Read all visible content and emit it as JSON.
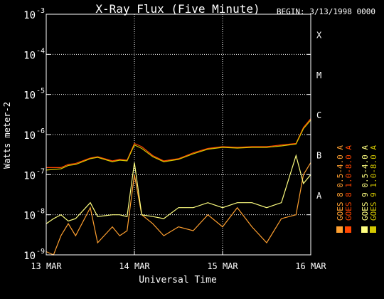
{
  "chart_data": {
    "type": "line",
    "title": "X-Ray Flux (Five Minute)",
    "begin_label": "BEGIN: 3/13/1998 0000",
    "xlabel": "Universal Time",
    "ylabel": "Watts meter-2",
    "x_ticks": [
      "13 MAR",
      "14 MAR",
      "15 MAR",
      "16 MAR"
    ],
    "x_range_days": [
      0,
      3
    ],
    "y_scale": "log",
    "y_range": [
      1e-09,
      0.001
    ],
    "y_ticks": [
      {
        "base": "10",
        "exp": "-3",
        "value": 0.001
      },
      {
        "base": "10",
        "exp": "-4",
        "value": 0.0001
      },
      {
        "base": "10",
        "exp": "-5",
        "value": 1e-05
      },
      {
        "base": "10",
        "exp": "-6",
        "value": 1e-06
      },
      {
        "base": "10",
        "exp": "-7",
        "value": 1e-07
      },
      {
        "base": "10",
        "exp": "-8",
        "value": 1e-08
      },
      {
        "base": "10",
        "exp": "-9",
        "value": 1e-09
      }
    ],
    "flare_classes": [
      {
        "label": "X",
        "value": 0.0003
      },
      {
        "label": "M",
        "value": 3e-05
      },
      {
        "label": "C",
        "value": 3e-06
      },
      {
        "label": "B",
        "value": 3e-07
      },
      {
        "label": "A",
        "value": 3e-08
      }
    ],
    "grid": "dotted",
    "legend_position": "right",
    "series": [
      {
        "name": "GOES 8 1.0-8.0 A",
        "color": "#ff4500",
        "x": [
          "3/13 00:00",
          "3/13 04:00",
          "3/13 06:00",
          "3/13 08:00",
          "3/13 12:00",
          "3/13 14:00",
          "3/13 18:00",
          "3/13 20:00",
          "3/13 22:00",
          "3/14 00:00",
          "3/14 02:00",
          "3/14 05:00",
          "3/14 08:00",
          "3/14 12:00",
          "3/14 16:00",
          "3/14 20:00",
          "3/15 00:00",
          "3/15 04:00",
          "3/15 08:00",
          "3/15 12:00",
          "3/15 16:00",
          "3/15 20:00",
          "3/15 22:00",
          "3/16 00:00"
        ],
        "y": [
          1.5e-07,
          1.5e-07,
          1.8e-07,
          1.9e-07,
          2.6e-07,
          2.8e-07,
          2.2e-07,
          2.4e-07,
          2.3e-07,
          6e-07,
          5e-07,
          3e-07,
          2.2e-07,
          2.5e-07,
          3.5e-07,
          4.5e-07,
          5e-07,
          4.8e-07,
          5e-07,
          5e-07,
          5.5e-07,
          6e-07,
          1.5e-06,
          2.5e-06
        ]
      },
      {
        "name": "GOES 8 0.5-4.0 A",
        "color": "#ffa030",
        "x": [
          "3/13 00:00",
          "3/13 02:00",
          "3/13 04:00",
          "3/13 06:00",
          "3/13 08:00",
          "3/13 12:00",
          "3/13 14:00",
          "3/13 18:00",
          "3/13 20:00",
          "3/13 22:00",
          "3/14 00:00",
          "3/14 02:00",
          "3/14 05:00",
          "3/14 08:00",
          "3/14 12:00",
          "3/14 16:00",
          "3/14 20:00",
          "3/15 00:00",
          "3/15 04:00",
          "3/15 08:00",
          "3/15 12:00",
          "3/15 16:00",
          "3/15 20:00",
          "3/15 22:00",
          "3/16 00:00"
        ],
        "y": [
          1.2e-09,
          1e-09,
          3e-09,
          6e-09,
          3e-09,
          1.5e-08,
          2e-09,
          5e-09,
          3e-09,
          4e-09,
          1e-07,
          1e-08,
          6e-09,
          3e-09,
          5e-09,
          4e-09,
          1e-08,
          5e-09,
          1.5e-08,
          5e-09,
          2e-09,
          8e-09,
          1e-08,
          1e-07,
          2e-07
        ]
      },
      {
        "name": "GOES 9 1.0-8.0 A",
        "color": "#d4c800",
        "x": [
          "3/13 00:00",
          "3/13 04:00",
          "3/13 06:00",
          "3/13 08:00",
          "3/13 12:00",
          "3/13 14:00",
          "3/13 18:00",
          "3/13 20:00",
          "3/13 22:00",
          "3/14 00:00",
          "3/14 02:00",
          "3/14 05:00",
          "3/14 08:00",
          "3/14 12:00",
          "3/14 16:00",
          "3/14 20:00",
          "3/15 00:00",
          "3/15 04:00",
          "3/15 08:00",
          "3/15 12:00",
          "3/15 16:00",
          "3/15 20:00",
          "3/15 22:00",
          "3/16 00:00"
        ],
        "y": [
          1.3e-07,
          1.4e-07,
          1.7e-07,
          1.8e-07,
          2.5e-07,
          2.7e-07,
          2.1e-07,
          2.3e-07,
          2.2e-07,
          5.5e-07,
          4.5e-07,
          2.8e-07,
          2.1e-07,
          2.4e-07,
          3.3e-07,
          4.3e-07,
          4.8e-07,
          4.6e-07,
          4.8e-07,
          4.8e-07,
          5.2e-07,
          5.8e-07,
          1.4e-06,
          2.3e-06
        ]
      },
      {
        "name": "GOES 9 0.5-4.0 A",
        "color": "#ffff80",
        "x": [
          "3/13 00:00",
          "3/13 02:00",
          "3/13 04:00",
          "3/13 06:00",
          "3/13 08:00",
          "3/13 12:00",
          "3/13 14:00",
          "3/13 18:00",
          "3/13 20:00",
          "3/13 22:00",
          "3/14 00:00",
          "3/14 02:00",
          "3/14 05:00",
          "3/14 08:00",
          "3/14 12:00",
          "3/14 16:00",
          "3/14 20:00",
          "3/15 00:00",
          "3/15 04:00",
          "3/15 08:00",
          "3/15 12:00",
          "3/15 16:00",
          "3/15 20:00",
          "3/15 22:00",
          "3/16 00:00"
        ],
        "y": [
          6e-09,
          8e-09,
          1e-08,
          7e-09,
          8e-09,
          2e-08,
          9e-09,
          1e-08,
          1e-08,
          9e-09,
          2e-07,
          1e-08,
          9e-09,
          8e-09,
          1.5e-08,
          1.5e-08,
          2e-08,
          1.5e-08,
          2e-08,
          2e-08,
          1.5e-08,
          2e-08,
          3e-07,
          6e-08,
          1e-07
        ]
      }
    ]
  }
}
